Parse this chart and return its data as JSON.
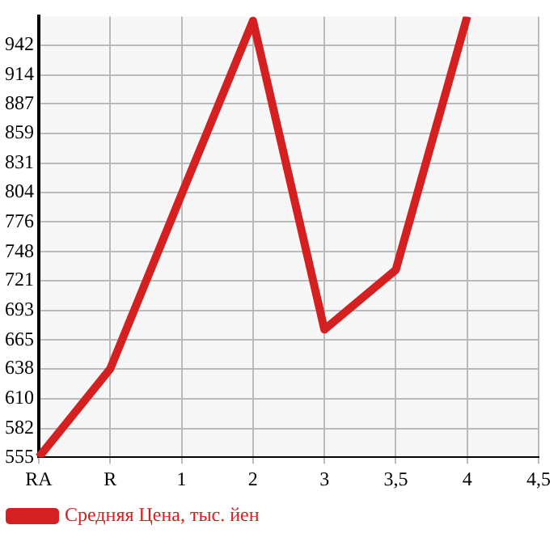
{
  "chart_data": {
    "type": "line",
    "categories": [
      "RA",
      "R",
      "1",
      "2",
      "3",
      "3,5",
      "4",
      "4,5"
    ],
    "series": [
      {
        "name": "Средняя Цена, тыс. йен",
        "color": "#d42020",
        "values": [
          555,
          638,
          802,
          965,
          675,
          731,
          969,
          null
        ]
      }
    ],
    "ylim": [
      555,
      969
    ],
    "yticks": [
      555,
      582,
      610,
      638,
      665,
      693,
      721,
      748,
      776,
      804,
      831,
      859,
      887,
      914,
      942
    ],
    "grid": true,
    "legend": "bottom left",
    "marker": "none",
    "line_style": "solid"
  }
}
